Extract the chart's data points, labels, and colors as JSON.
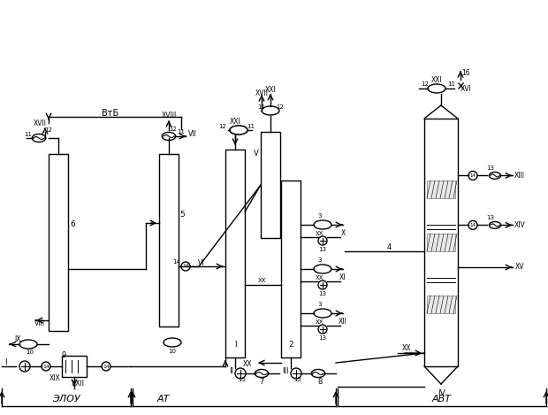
{
  "title": "",
  "bg_color": "#ffffff",
  "line_color": "#000000",
  "fig_width": 6.2,
  "fig_height": 4.69,
  "dpi": 100,
  "labels": {
    "VtB": "ВтБ",
    "ZLOU": "ЭЛОУ",
    "AT": "АТ",
    "AVT": "АВТ"
  }
}
